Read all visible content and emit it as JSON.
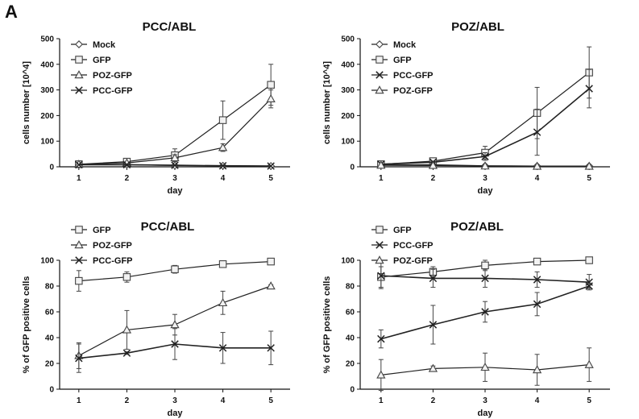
{
  "panel_label": "A",
  "chart_data": [
    {
      "type": "line",
      "title": "PCC/ABL",
      "xlabel": "day",
      "ylabel": "cells number [10^4]",
      "x": [
        1,
        2,
        3,
        4,
        5
      ],
      "xlim": [
        0.6,
        5.4
      ],
      "ylim": [
        0,
        500
      ],
      "yticks": [
        0,
        100,
        200,
        300,
        400,
        500
      ],
      "grid": false,
      "legend_placement": "top-left",
      "series": [
        {
          "name": "Mock",
          "marker": "diamond",
          "values": [
            8,
            8,
            5,
            4,
            3
          ],
          "errors": [
            0,
            0,
            0,
            0,
            0
          ]
        },
        {
          "name": "GFP",
          "marker": "square",
          "values": [
            10,
            20,
            45,
            182,
            320
          ],
          "errors": [
            0,
            5,
            25,
            75,
            80
          ]
        },
        {
          "name": "POZ-GFP",
          "marker": "triangle",
          "values": [
            10,
            15,
            35,
            75,
            265
          ],
          "errors": [
            0,
            4,
            12,
            15,
            35
          ]
        },
        {
          "name": "PCC-GFP",
          "marker": "x",
          "values": [
            8,
            8,
            6,
            4,
            3
          ],
          "errors": [
            0,
            0,
            0,
            0,
            0
          ]
        }
      ]
    },
    {
      "type": "line",
      "title": "POZ/ABL",
      "xlabel": "day",
      "ylabel": "cells number [10^4]",
      "x": [
        1,
        2,
        3,
        4,
        5
      ],
      "xlim": [
        0.6,
        5.4
      ],
      "ylim": [
        0,
        500
      ],
      "yticks": [
        0,
        100,
        200,
        300,
        400,
        500
      ],
      "grid": false,
      "legend_placement": "top-left",
      "series": [
        {
          "name": "Mock",
          "marker": "diamond",
          "values": [
            8,
            8,
            4,
            3,
            3
          ],
          "errors": [
            0,
            0,
            0,
            0,
            0
          ]
        },
        {
          "name": "GFP",
          "marker": "square",
          "values": [
            10,
            22,
            55,
            210,
            368
          ],
          "errors": [
            0,
            5,
            25,
            100,
            100
          ]
        },
        {
          "name": "PCC-GFP",
          "marker": "x",
          "values": [
            10,
            18,
            40,
            135,
            305
          ],
          "errors": [
            0,
            4,
            15,
            90,
            75
          ]
        },
        {
          "name": "POZ-GFP",
          "marker": "triangle",
          "values": [
            6,
            5,
            3,
            2,
            2
          ],
          "errors": [
            0,
            0,
            0,
            0,
            0
          ]
        }
      ]
    },
    {
      "type": "line",
      "title": "PCC/ABL",
      "xlabel": "day",
      "ylabel": "% of GFP positive cells",
      "x": [
        1,
        2,
        3,
        4,
        5
      ],
      "xlim": [
        0.6,
        5.4
      ],
      "ylim": [
        0,
        100
      ],
      "yticks": [
        0,
        20,
        40,
        60,
        80,
        100
      ],
      "grid": false,
      "legend_placement": "top-left",
      "series": [
        {
          "name": "GFP",
          "marker": "square",
          "values": [
            84,
            87,
            93,
            97,
            99
          ],
          "errors": [
            8,
            4,
            3,
            1,
            1
          ]
        },
        {
          "name": "POZ-GFP",
          "marker": "triangle",
          "values": [
            26,
            46,
            50,
            67,
            80
          ],
          "errors": [
            10,
            15,
            8,
            9,
            1
          ]
        },
        {
          "name": "PCC-GFP",
          "marker": "x",
          "values": [
            24,
            28,
            35,
            32,
            32
          ],
          "errors": [
            11,
            1,
            12,
            12,
            13
          ]
        }
      ]
    },
    {
      "type": "line",
      "title": "POZ/ABL",
      "xlabel": "day",
      "ylabel": "% of GFP positive cells",
      "x": [
        1,
        2,
        3,
        4,
        5
      ],
      "xlim": [
        0.6,
        5.4
      ],
      "ylim": [
        0,
        100
      ],
      "yticks": [
        0,
        20,
        40,
        60,
        80,
        100
      ],
      "grid": false,
      "legend_placement": "top-left",
      "series": [
        {
          "name": "GFP",
          "marker": "square",
          "values": [
            87,
            91,
            96,
            99,
            100
          ],
          "errors": [
            8,
            4,
            4,
            1,
            1
          ]
        },
        {
          "name": "PCC-GFP",
          "marker": "x",
          "values": [
            88,
            86,
            86,
            85,
            83
          ],
          "errors": [
            10,
            7,
            7,
            6,
            6
          ]
        },
        {
          "name": "POZ-GFP",
          "marker": "triangle",
          "values": [
            11,
            16,
            17,
            15,
            19
          ],
          "errors": [
            12,
            2,
            11,
            12,
            13
          ]
        },
        {
          "name": "",
          "marker": "x",
          "values": [
            39,
            50,
            60,
            66,
            80
          ],
          "errors": [
            7,
            15,
            8,
            9,
            2
          ]
        }
      ]
    }
  ]
}
